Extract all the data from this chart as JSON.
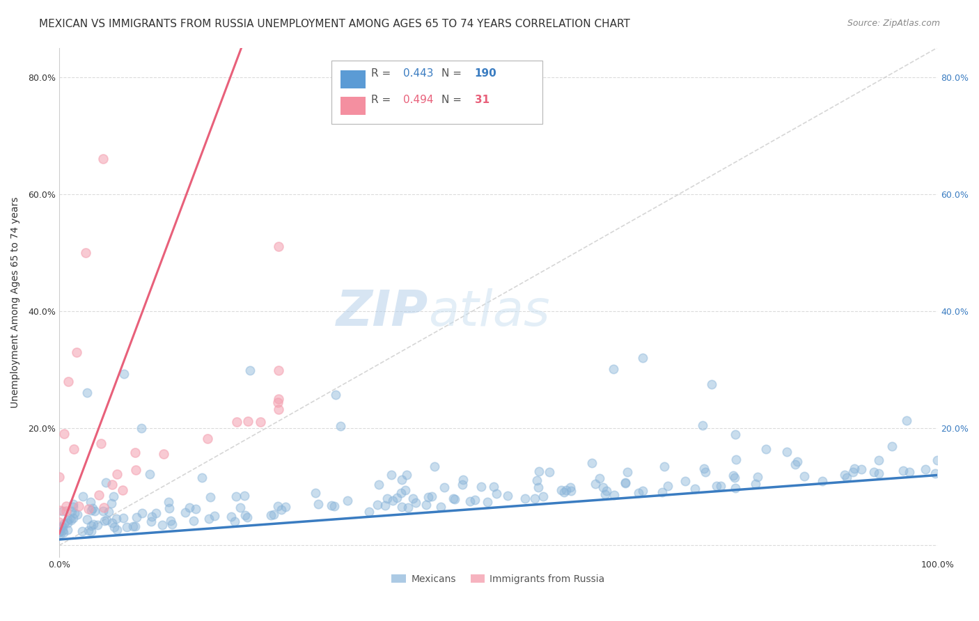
{
  "title": "MEXICAN VS IMMIGRANTS FROM RUSSIA UNEMPLOYMENT AMONG AGES 65 TO 74 YEARS CORRELATION CHART",
  "source": "Source: ZipAtlas.com",
  "xlabel": "",
  "ylabel": "Unemployment Among Ages 65 to 74 years",
  "watermark_zip": "ZIP",
  "watermark_atlas": "atlas",
  "xlim": [
    0.0,
    1.0
  ],
  "ylim": [
    -0.02,
    0.85
  ],
  "xticks": [
    0.0,
    0.2,
    0.4,
    0.6,
    0.8,
    1.0
  ],
  "xticklabels": [
    "0.0%",
    "",
    "",
    "",
    "",
    "100.0%"
  ],
  "yticks": [
    0.0,
    0.2,
    0.4,
    0.6,
    0.8
  ],
  "yticklabels": [
    "",
    "20.0%",
    "40.0%",
    "60.0%",
    "80.0%"
  ],
  "mexicans_color": "#89b4d9",
  "russia_color": "#f4a0b0",
  "mexicans_trend_color": "#3a7cc1",
  "russia_trend_color": "#e8607a",
  "identity_line_color": "#cccccc",
  "legend_r_mexicans": "0.443",
  "legend_n_mexicans": "190",
  "legend_r_russia": "0.494",
  "legend_n_russia": "31",
  "legend_color_mexicans": "#5b9bd5",
  "legend_color_russia": "#f48fa0",
  "legend_r_color": "#555555",
  "legend_n_color_mexicans": "#3a7cc1",
  "legend_n_color_russia": "#e8607a",
  "title_fontsize": 11,
  "source_fontsize": 9,
  "axis_label_fontsize": 10,
  "tick_fontsize": 9,
  "legend_fontsize": 11,
  "watermark_fontsize_zip": 52,
  "watermark_fontsize_atlas": 52,
  "watermark_color_zip": "#b0cce8",
  "watermark_color_atlas": "#c8dff0",
  "watermark_alpha": 0.5,
  "background_color": "#ffffff",
  "grid_color": "#cccccc",
  "grid_style": "--",
  "grid_alpha": 0.7,
  "mexicans_seed": 42,
  "russia_seed": 7,
  "mexicans_n": 190,
  "russia_n": 31,
  "marker_size": 80,
  "marker_alpha": 0.45,
  "marker_lw": 1.2
}
